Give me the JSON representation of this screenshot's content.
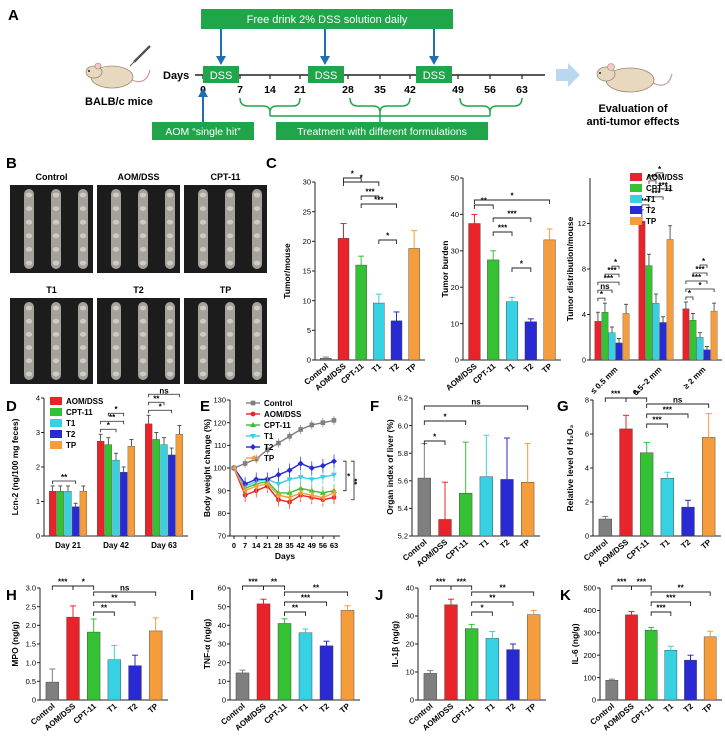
{
  "panel_labels": {
    "A": "A",
    "B": "B",
    "C": "C",
    "D": "D",
    "E": "E",
    "F": "F",
    "G": "G",
    "H": "H",
    "I": "I",
    "J": "J",
    "K": "K"
  },
  "colors": {
    "Control": "#7f7f7f",
    "AOM/DSS": "#e8242a",
    "CPT-11": "#34c234",
    "T1": "#37d1e4",
    "T2": "#2a2ad4",
    "TP": "#f59c3c",
    "dss_box": "#1fa64a",
    "arrow": "#1f6fb2",
    "bracket": "#1fa64a"
  },
  "timeline": {
    "free_drink": "Free drink 2% DSS solution daily",
    "days_label": "Days",
    "ticks": [
      "0",
      "7",
      "14",
      "21",
      "28",
      "35",
      "42",
      "49",
      "56",
      "63"
    ],
    "dss": "DSS",
    "mice": "BALB/c mice",
    "aom": "AOM “single hit”",
    "treatment": "Treatment with different formulations",
    "eval_line1": "Evaluation of",
    "eval_line2": "anti-tumor effects"
  },
  "photos": {
    "top": [
      "Control",
      "AOM/DSS",
      "CPT-11"
    ],
    "bottom": [
      "T1",
      "T2",
      "TP"
    ]
  },
  "chart_data": [
    {
      "id": "C1",
      "type": "bar",
      "ylabel": "Tumor/mouse",
      "ylim": [
        0,
        30
      ],
      "yticks": [
        "0",
        "5",
        "10",
        "15",
        "20",
        "25",
        "30"
      ],
      "categories": [
        "Control",
        "AOM/DSS",
        "CPT-11",
        "T1",
        "T2",
        "TP"
      ],
      "values": [
        0.3,
        20.5,
        16.0,
        9.6,
        6.6,
        18.8
      ],
      "errors": [
        0.2,
        2.5,
        1.5,
        1.5,
        1.5,
        3.0
      ],
      "sig": [
        {
          "a": 1,
          "b": 2,
          "s": "*"
        },
        {
          "a": 1,
          "b": 3,
          "s": "*"
        },
        {
          "a": 2,
          "b": 3,
          "s": "***"
        },
        {
          "a": 2,
          "b": 4,
          "s": "***"
        },
        {
          "a": 3,
          "b": 4,
          "s": "*"
        }
      ]
    },
    {
      "id": "C2",
      "type": "bar",
      "ylabel": "Tumor burden",
      "ylim": [
        0,
        50
      ],
      "yticks": [
        "0",
        "10",
        "20",
        "30",
        "40",
        "50"
      ],
      "categories": [
        "AOM/DSS",
        "CPT-11",
        "T1",
        "T2",
        "TP"
      ],
      "values": [
        37.5,
        27.5,
        16.0,
        10.5,
        33.0
      ],
      "errors": [
        2.5,
        2.5,
        1.2,
        0.8,
        3.0
      ],
      "sig": [
        {
          "a": 0,
          "b": 1,
          "s": "**"
        },
        {
          "a": 0,
          "b": 4,
          "s": "*"
        },
        {
          "a": 1,
          "b": 3,
          "s": "***"
        },
        {
          "a": 1,
          "b": 2,
          "s": "***"
        },
        {
          "a": 2,
          "b": 3,
          "s": "*"
        }
      ]
    },
    {
      "id": "C3",
      "type": "grouped-bar",
      "ylabel": "Tumor distribution/mouse",
      "ylim": [
        0,
        16
      ],
      "yticks": [
        "0",
        "4",
        "8",
        "12"
      ],
      "groups": [
        "≤ 0.5 mm",
        "0.5~2 mm",
        "≥ 2 mm"
      ],
      "legend": [
        "AOM/DSS",
        "CPT-11",
        "T1",
        "T2",
        "TP"
      ],
      "series": [
        {
          "name": "AOM/DSS",
          "values": [
            3.4,
            12.2,
            4.5
          ],
          "errors": [
            0.8,
            1.0,
            0.6
          ]
        },
        {
          "name": "CPT-11",
          "values": [
            4.2,
            8.3,
            3.5
          ],
          "errors": [
            0.8,
            1.0,
            0.6
          ]
        },
        {
          "name": "T1",
          "values": [
            2.4,
            5.0,
            2.0
          ],
          "errors": [
            0.5,
            0.8,
            0.4
          ]
        },
        {
          "name": "T2",
          "values": [
            1.5,
            3.3,
            0.9
          ],
          "errors": [
            0.4,
            0.5,
            0.3
          ]
        },
        {
          "name": "TP",
          "values": [
            4.1,
            10.6,
            4.3
          ],
          "errors": [
            0.8,
            1.2,
            0.7
          ]
        }
      ],
      "sig": [
        {
          "g": 0,
          "a": 0,
          "b": 1,
          "s": "*"
        },
        {
          "g": 0,
          "a": 0,
          "b": 2,
          "s": "ns"
        },
        {
          "g": 0,
          "a": 0,
          "b": 3,
          "s": "***"
        },
        {
          "g": 0,
          "a": 1,
          "b": 3,
          "s": "***"
        },
        {
          "g": 0,
          "a": 2,
          "b": 3,
          "s": "*"
        },
        {
          "g": 1,
          "a": 0,
          "b": 1,
          "s": "***"
        },
        {
          "g": 1,
          "a": 1,
          "b": 3,
          "s": "***"
        },
        {
          "g": 1,
          "a": 2,
          "b": 4,
          "s": "***"
        },
        {
          "g": 1,
          "a": 1,
          "b": 2,
          "s": "***"
        },
        {
          "g": 1,
          "a": 2,
          "b": 3,
          "s": "*"
        },
        {
          "g": 2,
          "a": 0,
          "b": 1,
          "s": "*"
        },
        {
          "g": 2,
          "a": 0,
          "b": 4,
          "s": "*"
        },
        {
          "g": 2,
          "a": 0,
          "b": 3,
          "s": "***"
        },
        {
          "g": 2,
          "a": 1,
          "b": 3,
          "s": "***"
        },
        {
          "g": 2,
          "a": 2,
          "b": 3,
          "s": "*"
        }
      ]
    },
    {
      "id": "D",
      "type": "grouped-bar",
      "ylabel": "Lcn-2 (ng/100 mg feces)",
      "ylim": [
        0,
        4
      ],
      "yticks": [
        "0",
        "1",
        "2",
        "3",
        "4"
      ],
      "groups": [
        "Day 21",
        "Day 42",
        "Day 63"
      ],
      "legend": [
        "AOM/DSS",
        "CPT-11",
        "T1",
        "T2",
        "TP"
      ],
      "series": [
        {
          "name": "AOM/DSS",
          "values": [
            1.3,
            2.75,
            3.25
          ],
          "errors": [
            0.15,
            0.2,
            0.25
          ]
        },
        {
          "name": "CPT-11",
          "values": [
            1.3,
            2.65,
            2.8
          ],
          "errors": [
            0.15,
            0.2,
            0.2
          ]
        },
        {
          "name": "T1",
          "values": [
            1.3,
            2.2,
            2.65
          ],
          "errors": [
            0.15,
            0.2,
            0.2
          ]
        },
        {
          "name": "T2",
          "values": [
            0.85,
            1.85,
            2.35
          ],
          "errors": [
            0.1,
            0.15,
            0.2
          ]
        },
        {
          "name": "TP",
          "values": [
            1.3,
            2.6,
            2.95
          ],
          "errors": [
            0.15,
            0.2,
            0.25
          ]
        }
      ],
      "sig": [
        {
          "g": 0,
          "a": 0,
          "b": 3,
          "s": "**"
        },
        {
          "g": 1,
          "a": 0,
          "b": 2,
          "s": "*"
        },
        {
          "g": 1,
          "a": 0,
          "b": 3,
          "s": "**"
        },
        {
          "g": 1,
          "a": 1,
          "b": 3,
          "s": "*"
        },
        {
          "g": 2,
          "a": 0,
          "b": 3,
          "s": "*"
        },
        {
          "g": 2,
          "a": 0,
          "b": 2,
          "s": "**"
        },
        {
          "g": 2,
          "a": 0,
          "b": 4,
          "s": "ns"
        }
      ]
    },
    {
      "id": "E",
      "type": "line",
      "ylabel": "Body weight change (%)",
      "xlabel": "Days",
      "ylim": [
        70,
        130
      ],
      "yticks": [
        "70",
        "80",
        "90",
        "100",
        "110",
        "120",
        "130"
      ],
      "x": [
        0,
        7,
        14,
        21,
        28,
        35,
        42,
        49,
        56,
        63
      ],
      "xticks": [
        "0",
        "7",
        "14",
        "21",
        "28",
        "35",
        "42",
        "49",
        "56",
        "63"
      ],
      "series": [
        {
          "name": "Control",
          "marker": "square",
          "values": [
            100,
            102,
            104,
            108,
            111,
            114,
            117,
            119,
            120,
            121
          ],
          "errors": [
            1,
            2,
            2,
            2,
            2,
            2,
            2,
            2,
            2,
            2
          ]
        },
        {
          "name": "AOM/DSS",
          "marker": "circle",
          "values": [
            100,
            88,
            90,
            92,
            86,
            85,
            88,
            87,
            86,
            87
          ],
          "errors": [
            1,
            3,
            3,
            3,
            3,
            3,
            3,
            3,
            3,
            3
          ]
        },
        {
          "name": "CPT-11",
          "marker": "triangle-up",
          "values": [
            100,
            91,
            93,
            94,
            89,
            89,
            91,
            90,
            89,
            90
          ],
          "errors": [
            1,
            3,
            3,
            3,
            3,
            3,
            3,
            3,
            3,
            3
          ]
        },
        {
          "name": "T1",
          "marker": "triangle-down",
          "values": [
            100,
            92,
            94,
            95,
            93,
            95,
            96,
            95,
            96,
            97
          ],
          "errors": [
            1,
            3,
            3,
            3,
            3,
            3,
            3,
            3,
            3,
            3
          ]
        },
        {
          "name": "T2",
          "marker": "diamond",
          "values": [
            100,
            93,
            95,
            95,
            97,
            99,
            102,
            100,
            101,
            103
          ],
          "errors": [
            1,
            3,
            3,
            3,
            3,
            3,
            3,
            3,
            3,
            3
          ]
        },
        {
          "name": "TP",
          "marker": "triangle-left",
          "values": [
            100,
            90,
            92,
            93,
            88,
            87,
            89,
            88,
            87,
            89
          ],
          "errors": [
            1,
            3,
            3,
            3,
            3,
            3,
            3,
            3,
            3,
            3
          ]
        }
      ],
      "sig": [
        "*",
        "**"
      ]
    },
    {
      "id": "F",
      "type": "bar",
      "ylabel": "Organ index of liver (%)",
      "ylim": [
        5.2,
        6.2
      ],
      "yticks": [
        "5.2",
        "5.4",
        "5.6",
        "5.8",
        "6.0",
        "6.2"
      ],
      "categories": [
        "Control",
        "AOM/DSS",
        "CPT-11",
        "T1",
        "T2",
        "TP"
      ],
      "values": [
        5.62,
        5.32,
        5.51,
        5.63,
        5.61,
        5.59
      ],
      "errors": [
        0.25,
        0.27,
        0.37,
        0.3,
        0.3,
        0.28
      ],
      "sig": [
        {
          "a": 0,
          "b": 1,
          "s": "*"
        },
        {
          "a": 0,
          "b": 2,
          "s": "*"
        },
        {
          "a": 0,
          "b": 5,
          "s": "ns"
        }
      ]
    },
    {
      "id": "G",
      "type": "bar",
      "ylabel": "Relative level of H₂O₂",
      "ylim": [
        0,
        8
      ],
      "yticks": [
        "0",
        "2",
        "4",
        "6",
        "8"
      ],
      "categories": [
        "Control",
        "AOM/DSS",
        "CPT-11",
        "T1",
        "T2",
        "TP"
      ],
      "values": [
        1.0,
        6.3,
        4.9,
        3.4,
        1.7,
        5.8
      ],
      "errors": [
        0.15,
        0.8,
        0.6,
        0.35,
        0.4,
        1.4
      ],
      "sig": [
        {
          "a": 0,
          "b": 1,
          "s": "***"
        },
        {
          "a": 1,
          "b": 2,
          "s": "**"
        },
        {
          "a": 2,
          "b": 5,
          "s": "ns"
        },
        {
          "a": 2,
          "b": 4,
          "s": "***"
        },
        {
          "a": 2,
          "b": 3,
          "s": "***"
        }
      ]
    },
    {
      "id": "H",
      "type": "bar",
      "ylabel": "MPO (ng/g)",
      "ylim": [
        0,
        3
      ],
      "yticks": [
        "0",
        "0.5",
        "1.0",
        "1.5",
        "2.0",
        "2.5",
        "3.0"
      ],
      "categories": [
        "Control",
        "AOM/DSS",
        "CPT-11",
        "T1",
        "T2",
        "TP"
      ],
      "values": [
        0.48,
        2.22,
        1.82,
        1.08,
        0.92,
        1.85
      ],
      "errors": [
        0.35,
        0.3,
        0.35,
        0.38,
        0.28,
        0.35
      ],
      "sig": [
        {
          "a": 0,
          "b": 1,
          "s": "***"
        },
        {
          "a": 1,
          "b": 2,
          "s": "*"
        },
        {
          "a": 2,
          "b": 5,
          "s": "ns"
        },
        {
          "a": 2,
          "b": 4,
          "s": "**"
        },
        {
          "a": 2,
          "b": 3,
          "s": "**"
        }
      ]
    },
    {
      "id": "I",
      "type": "bar",
      "ylabel": "TNF-α (ng/g)",
      "ylim": [
        0,
        60
      ],
      "yticks": [
        "0",
        "10",
        "20",
        "30",
        "40",
        "50",
        "60"
      ],
      "categories": [
        "Control",
        "AOM/DSS",
        "CPT-11",
        "T1",
        "T2",
        "TP"
      ],
      "values": [
        14.5,
        51.5,
        41.0,
        36.0,
        29.0,
        48.0
      ],
      "errors": [
        1.5,
        2.5,
        2.5,
        2.0,
        2.5,
        2.5
      ],
      "sig": [
        {
          "a": 0,
          "b": 1,
          "s": "***"
        },
        {
          "a": 1,
          "b": 2,
          "s": "**"
        },
        {
          "a": 2,
          "b": 5,
          "s": "**"
        },
        {
          "a": 2,
          "b": 4,
          "s": "***"
        },
        {
          "a": 2,
          "b": 3,
          "s": "**"
        }
      ]
    },
    {
      "id": "J",
      "type": "bar",
      "ylabel": "IL-1β (ng/g)",
      "ylim": [
        0,
        40
      ],
      "yticks": [
        "0",
        "10",
        "20",
        "30",
        "40"
      ],
      "categories": [
        "Control",
        "AOM/DSS",
        "CPT-11",
        "T1",
        "T2",
        "TP"
      ],
      "values": [
        9.5,
        34.0,
        25.5,
        22.0,
        18.0,
        30.5
      ],
      "errors": [
        1.0,
        2.0,
        1.5,
        2.5,
        2.0,
        1.5
      ],
      "sig": [
        {
          "a": 0,
          "b": 1,
          "s": "***"
        },
        {
          "a": 1,
          "b": 2,
          "s": "***"
        },
        {
          "a": 2,
          "b": 5,
          "s": "**"
        },
        {
          "a": 2,
          "b": 4,
          "s": "**"
        },
        {
          "a": 2,
          "b": 3,
          "s": "*"
        }
      ]
    },
    {
      "id": "K",
      "type": "bar",
      "ylabel": "IL-6 (ng/g)",
      "ylim": [
        0,
        500
      ],
      "yticks": [
        "0",
        "100",
        "200",
        "300",
        "400",
        "500"
      ],
      "categories": [
        "Control",
        "AOM/DSS",
        "CPT-11",
        "T1",
        "T2",
        "TP"
      ],
      "values": [
        88,
        380,
        312,
        222,
        178,
        282
      ],
      "errors": [
        5,
        15,
        12,
        18,
        22,
        25
      ],
      "sig": [
        {
          "a": 0,
          "b": 1,
          "s": "***"
        },
        {
          "a": 1,
          "b": 2,
          "s": "***"
        },
        {
          "a": 2,
          "b": 5,
          "s": "**"
        },
        {
          "a": 2,
          "b": 4,
          "s": "***"
        },
        {
          "a": 2,
          "b": 3,
          "s": "***"
        }
      ]
    }
  ]
}
